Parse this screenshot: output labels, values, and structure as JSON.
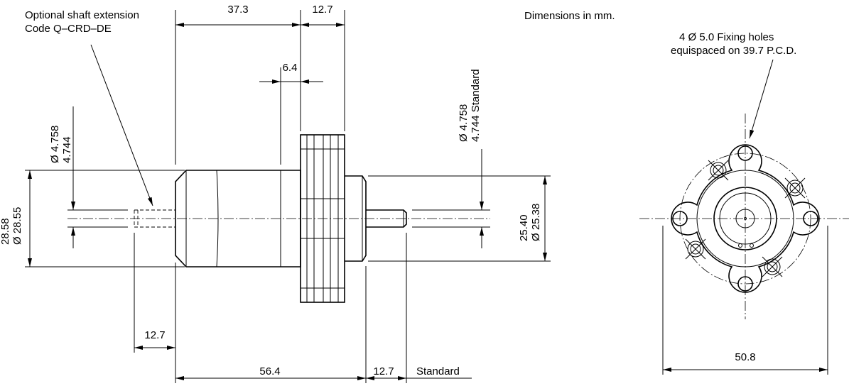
{
  "notes": {
    "optional_extension_line1": "Optional shaft extension",
    "optional_extension_line2": "Code Q–CRD–DE",
    "units": "Dimensions in mm.",
    "fixing_holes_line1": "4 Ø 5.0 Fixing holes",
    "fixing_holes_line2": "equispaced on 39.7 P.C.D."
  },
  "dimensions": {
    "flange_to_body": "37.3",
    "flange_thickness": "12.7",
    "pilot_step": "6.4",
    "ext_shaft_dia_max": "Ø 4.758",
    "ext_shaft_dia_min": "4.744",
    "std_shaft_dia_max": "Ø 4.758",
    "std_shaft_dia_min": "4.744 Standard",
    "body_dia_max": "28.58",
    "body_dia_min": "Ø 28.55",
    "pilot_dia_max": "25.40",
    "pilot_dia_min": "Ø 25.38",
    "ext_shaft_length": "12.7",
    "body_length": "56.4",
    "std_shaft_length": "12.7",
    "std_shaft_label": "Standard",
    "flange_width": "50.8"
  },
  "colors": {
    "line": "#000000",
    "background": "#ffffff"
  }
}
